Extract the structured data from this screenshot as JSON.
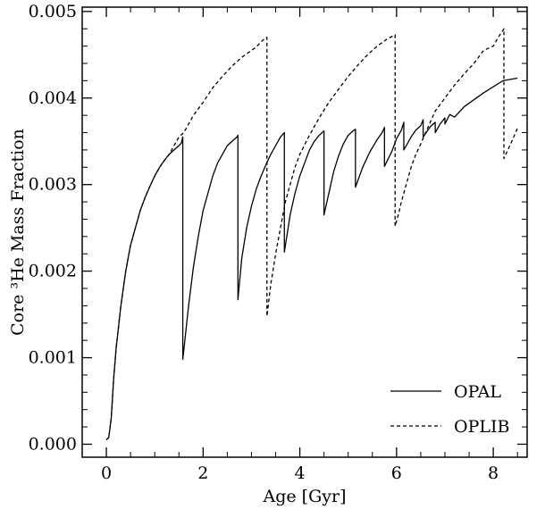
{
  "chart_data": {
    "type": "line",
    "xlabel": "Age [Gyr]",
    "ylabel": "Core ³He Mass Fraction",
    "xlim": [
      -0.5,
      8.7
    ],
    "ylim": [
      -0.00015,
      0.00505
    ],
    "x_ticks": [
      0,
      2,
      4,
      6,
      8
    ],
    "x_tick_labels": [
      "0",
      "2",
      "4",
      "6",
      "8"
    ],
    "y_ticks": [
      0.0,
      0.001,
      0.002,
      0.003,
      0.004,
      0.005
    ],
    "y_tick_labels": [
      "0.000",
      "0.001",
      "0.002",
      "0.003",
      "0.004",
      "0.005"
    ],
    "grid": false,
    "legend_position": "bottom-right",
    "series": [
      {
        "name": "OPAL",
        "style": "solid",
        "color": "#000000",
        "x": [
          0.0,
          0.05,
          0.1,
          0.15,
          0.2,
          0.3,
          0.4,
          0.5,
          0.6,
          0.7,
          0.8,
          0.9,
          1.0,
          1.1,
          1.2,
          1.3,
          1.4,
          1.5,
          1.55,
          1.58,
          1.58,
          1.7,
          1.8,
          1.9,
          2.0,
          2.1,
          2.2,
          2.3,
          2.4,
          2.5,
          2.6,
          2.7,
          2.72,
          2.72,
          2.8,
          2.9,
          3.0,
          3.1,
          3.2,
          3.3,
          3.4,
          3.5,
          3.6,
          3.68,
          3.68,
          3.8,
          3.9,
          4.0,
          4.1,
          4.2,
          4.3,
          4.4,
          4.5,
          4.5,
          4.6,
          4.7,
          4.8,
          4.9,
          5.0,
          5.1,
          5.15,
          5.15,
          5.3,
          5.45,
          5.6,
          5.7,
          5.75,
          5.75,
          5.9,
          6.0,
          6.1,
          6.15,
          6.15,
          6.3,
          6.4,
          6.5,
          6.55,
          6.55,
          6.7,
          6.8,
          6.8,
          6.9,
          7.0,
          7.0,
          7.1,
          7.2,
          7.4,
          7.6,
          7.8,
          8.0,
          8.2,
          8.5
        ],
        "y": [
          5e-05,
          8e-05,
          0.0003,
          0.00075,
          0.0011,
          0.0016,
          0.002,
          0.0023,
          0.0025,
          0.0027,
          0.00285,
          0.00298,
          0.0031,
          0.0032,
          0.00328,
          0.00335,
          0.0034,
          0.00345,
          0.00348,
          0.00355,
          0.00098,
          0.0016,
          0.00205,
          0.0024,
          0.0027,
          0.0029,
          0.0031,
          0.00325,
          0.00335,
          0.00345,
          0.0035,
          0.00355,
          0.00357,
          0.00167,
          0.00215,
          0.0025,
          0.00275,
          0.00295,
          0.0031,
          0.00323,
          0.00335,
          0.00345,
          0.00355,
          0.0036,
          0.00222,
          0.00265,
          0.0029,
          0.0031,
          0.00325,
          0.0034,
          0.0035,
          0.00357,
          0.00362,
          0.00265,
          0.0029,
          0.00315,
          0.00333,
          0.00347,
          0.00357,
          0.00362,
          0.00364,
          0.00297,
          0.0032,
          0.00338,
          0.00352,
          0.0036,
          0.00366,
          0.00321,
          0.00338,
          0.00353,
          0.00363,
          0.00372,
          0.0034,
          0.00355,
          0.00363,
          0.00368,
          0.00375,
          0.00355,
          0.00367,
          0.00372,
          0.0036,
          0.0037,
          0.00377,
          0.0037,
          0.00381,
          0.00378,
          0.0039,
          0.00398,
          0.00406,
          0.00413,
          0.0042,
          0.00423
        ]
      },
      {
        "name": "OPLIB",
        "style": "dashed",
        "color": "#000000",
        "x": [
          0.0,
          0.05,
          0.1,
          0.15,
          0.2,
          0.3,
          0.4,
          0.5,
          0.6,
          0.7,
          0.8,
          0.9,
          1.0,
          1.1,
          1.2,
          1.3,
          1.4,
          1.5,
          1.6,
          1.7,
          1.8,
          2.0,
          2.2,
          2.4,
          2.6,
          2.8,
          3.0,
          3.1,
          3.2,
          3.3,
          3.32,
          3.32,
          3.4,
          3.5,
          3.6,
          3.7,
          3.8,
          3.9,
          4.0,
          4.2,
          4.4,
          4.6,
          4.8,
          5.0,
          5.2,
          5.4,
          5.6,
          5.8,
          5.97,
          5.97,
          6.05,
          6.1,
          6.2,
          6.3,
          6.4,
          6.5,
          6.6,
          6.8,
          7.0,
          7.2,
          7.4,
          7.6,
          7.8,
          8.0,
          8.1,
          8.2,
          8.22,
          8.22,
          8.3,
          8.4,
          8.5
        ],
        "y": [
          5e-05,
          8e-05,
          0.0003,
          0.00075,
          0.0011,
          0.0016,
          0.002,
          0.0023,
          0.0025,
          0.0027,
          0.00285,
          0.00298,
          0.0031,
          0.0032,
          0.00328,
          0.00335,
          0.00345,
          0.00355,
          0.0036,
          0.0037,
          0.0038,
          0.00395,
          0.00412,
          0.00425,
          0.00437,
          0.00447,
          0.00455,
          0.00459,
          0.00465,
          0.0047,
          0.0047,
          0.00148,
          0.00185,
          0.0022,
          0.0025,
          0.0028,
          0.003,
          0.0032,
          0.00335,
          0.00357,
          0.00377,
          0.00395,
          0.0041,
          0.00425,
          0.00438,
          0.0045,
          0.0046,
          0.00468,
          0.00473,
          0.00252,
          0.00268,
          0.0028,
          0.003,
          0.0032,
          0.00335,
          0.00347,
          0.0036,
          0.00385,
          0.004,
          0.00415,
          0.00428,
          0.0044,
          0.00455,
          0.0046,
          0.0047,
          0.00478,
          0.0048,
          0.0033,
          0.0034,
          0.00352,
          0.00365
        ]
      }
    ]
  }
}
